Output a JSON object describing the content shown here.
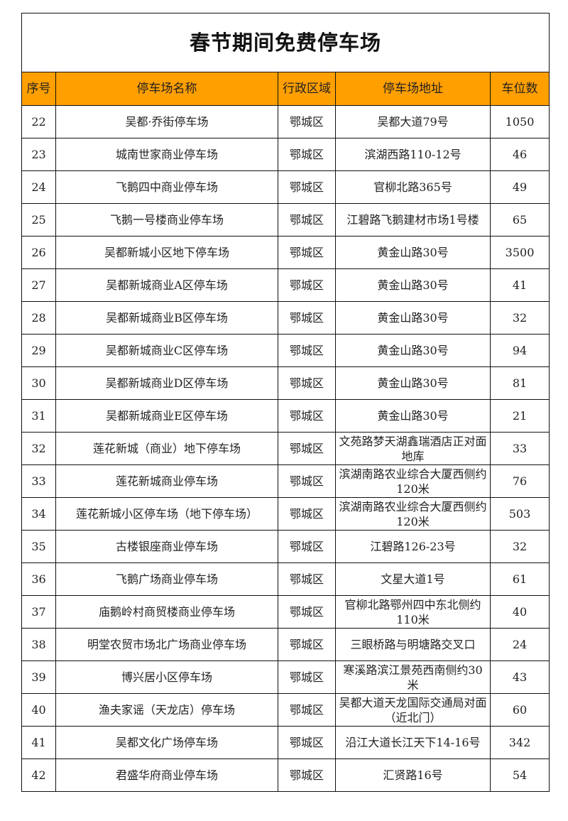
{
  "title": "春节期间免费停车场",
  "header_color": "#ff9f00",
  "columns": [
    "序号",
    "停车场名称",
    "行政区域",
    "停车场地址",
    "车位数"
  ],
  "rows": [
    [
      "22",
      "吴都·乔街停车场",
      "鄂城区",
      "吴都大道79号",
      "1050"
    ],
    [
      "23",
      "城南世家商业停车场",
      "鄂城区",
      "滨湖西路110-12号",
      "46"
    ],
    [
      "24",
      "飞鹅四中商业停车场",
      "鄂城区",
      "官柳北路365号",
      "49"
    ],
    [
      "25",
      "飞鹅一号楼商业停车场",
      "鄂城区",
      "江碧路飞鹅建材市场1号楼",
      "65"
    ],
    [
      "26",
      "吴都新城小区地下停车场",
      "鄂城区",
      "黄金山路30号",
      "3500"
    ],
    [
      "27",
      "吴都新城商业A区停车场",
      "鄂城区",
      "黄金山路30号",
      "41"
    ],
    [
      "28",
      "吴都新城商业B区停车场",
      "鄂城区",
      "黄金山路30号",
      "32"
    ],
    [
      "29",
      "吴都新城商业C区停车场",
      "鄂城区",
      "黄金山路30号",
      "94"
    ],
    [
      "30",
      "吴都新城商业D区停车场",
      "鄂城区",
      "黄金山路30号",
      "81"
    ],
    [
      "31",
      "吴都新城商业E区停车场",
      "鄂城区",
      "黄金山路30号",
      "21"
    ],
    [
      "32",
      "莲花新城（商业）地下停车场",
      "鄂城区",
      "文苑路梦天湖鑫瑞酒店正对面地库",
      "33"
    ],
    [
      "33",
      "莲花新城商业停车场",
      "鄂城区",
      "滨湖南路农业综合大厦西侧约120米",
      "76"
    ],
    [
      "34",
      "莲花新城小区停车场（地下停车场）",
      "鄂城区",
      "滨湖南路农业综合大厦西侧约120米",
      "503"
    ],
    [
      "35",
      "古楼银座商业停车场",
      "鄂城区",
      "江碧路126-23号",
      "32"
    ],
    [
      "36",
      "飞鹅广场商业停车场",
      "鄂城区",
      "文星大道1号",
      "61"
    ],
    [
      "37",
      "庙鹅岭村商贸楼商业停车场",
      "鄂城区",
      "官柳北路鄂州四中东北侧约110米",
      "40"
    ],
    [
      "38",
      "明堂农贸市场北广场商业停车场",
      "鄂城区",
      "三眼桥路与明塘路交叉口",
      "24"
    ],
    [
      "39",
      "博兴居小区停车场",
      "鄂城区",
      "寒溪路滨江景苑西南侧约30米",
      "43"
    ],
    [
      "40",
      "渔夫家谣（天龙店）停车场",
      "鄂城区",
      "吴都大道天龙国际交通局对面（近北门）",
      "60"
    ],
    [
      "41",
      "吴都文化广场停车场",
      "鄂城区",
      "沿江大道长江天下14-16号",
      "342"
    ],
    [
      "42",
      "君盛华府商业停车场",
      "鄂城区",
      "汇贤路16号",
      "54"
    ]
  ]
}
